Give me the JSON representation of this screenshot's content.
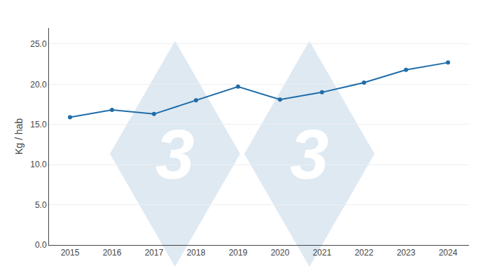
{
  "chart_data": {
    "type": "line",
    "x": [
      2015,
      2016,
      2017,
      2018,
      2019,
      2020,
      2021,
      2022,
      2023,
      2024
    ],
    "values": [
      15.9,
      16.8,
      16.3,
      18.0,
      19.7,
      18.1,
      19.0,
      20.2,
      21.8,
      22.7
    ],
    "color": "#1f6ca8",
    "marker": "circle",
    "ylabel": "Kg / hab",
    "xlim": [
      2014.5,
      2024.5
    ],
    "xticks": [
      2015,
      2016,
      2017,
      2018,
      2019,
      2020,
      2021,
      2022,
      2023,
      2024
    ],
    "ylim": [
      0,
      27
    ],
    "yticks": [
      {
        "value": 0,
        "label": "0.0"
      },
      {
        "value": 5,
        "label": "5.0"
      },
      {
        "value": 10,
        "label": "10.0"
      },
      {
        "value": 15,
        "label": "15.0"
      },
      {
        "value": 20,
        "label": "20.0"
      },
      {
        "value": 25,
        "label": "25.0"
      }
    ],
    "grid": "y",
    "annotations": [
      "3",
      "3"
    ]
  }
}
